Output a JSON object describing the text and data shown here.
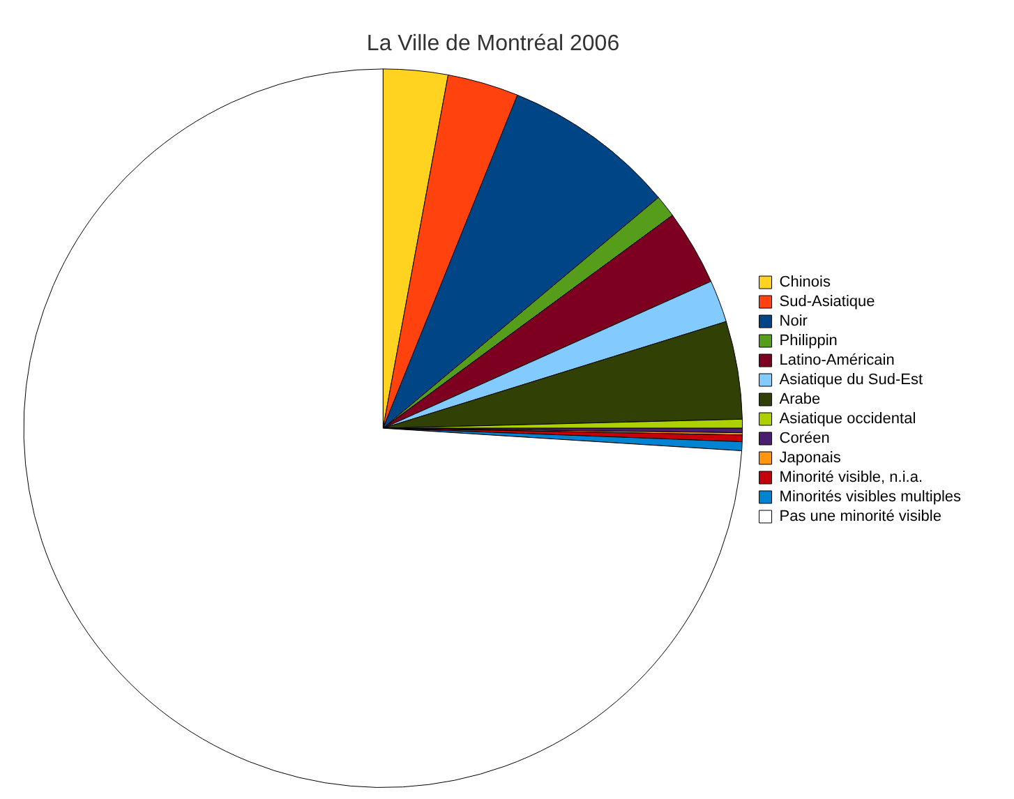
{
  "chart_data": {
    "type": "pie",
    "title": "La Ville de Montréal 2006",
    "categories": [
      "Chinois",
      "Sud-Asiatique",
      "Noir",
      "Philippin",
      "Latino-Américain",
      "Asiatique du Sud-Est",
      "Arabe",
      "Asiatique occidental",
      "Coréen",
      "Japonais",
      "Minorité visible, n.i.a.",
      "Minorités visibles multiples",
      "Pas une minorité visible"
    ],
    "values": [
      2.9,
      3.2,
      7.8,
      1.0,
      3.4,
      1.9,
      4.4,
      0.4,
      0.2,
      0.1,
      0.3,
      0.4,
      74.0
    ],
    "colors": [
      "#ffd320",
      "#ff420e",
      "#004586",
      "#579d1c",
      "#7e0021",
      "#83caff",
      "#314004",
      "#aecf00",
      "#4b1f6f",
      "#ff950e",
      "#c5000b",
      "#0084d1",
      "#ffffff"
    ],
    "legend": "right"
  }
}
